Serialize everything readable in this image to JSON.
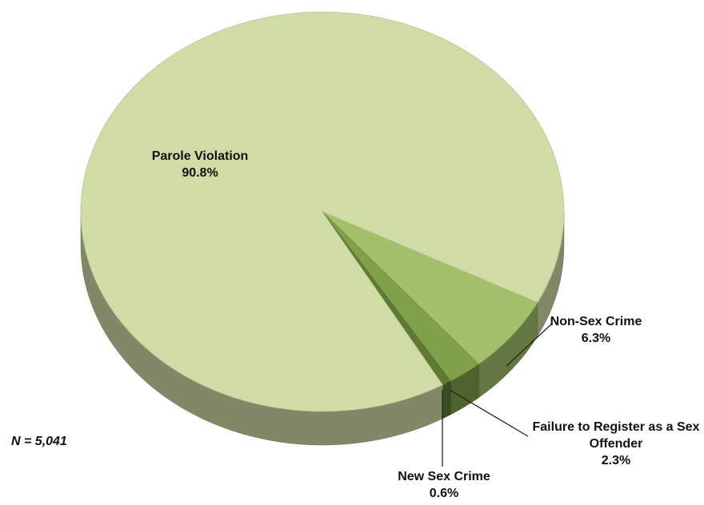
{
  "chart_data": {
    "type": "pie",
    "categories": [
      "Parole Violation",
      "Non-Sex Crime",
      "Failure to Register as a Sex Offender",
      "New Sex Crime"
    ],
    "values": [
      90.8,
      6.3,
      2.3,
      0.6
    ],
    "value_labels": [
      "90.8%",
      "6.3%",
      "2.3%",
      "0.6%"
    ],
    "colors": [
      "#cfdca6",
      "#a2c16a",
      "#80a04a",
      "#5e7a33"
    ],
    "annotation": "N = 5,041"
  }
}
